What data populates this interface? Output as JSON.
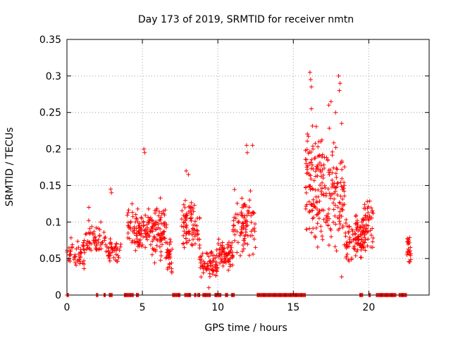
{
  "chart_data": {
    "type": "scatter",
    "title": "Day 173 of 2019, SRMTID for receiver nmtn",
    "xlabel": "GPS time / hours",
    "ylabel": "SRMTID / TECUs",
    "xlim": [
      0,
      24
    ],
    "ylim": [
      0,
      0.35
    ],
    "xticks": [
      0,
      5,
      10,
      15,
      20
    ],
    "xtick_labels": [
      "0",
      "5",
      "10",
      "15",
      "20"
    ],
    "yticks": [
      0,
      0.05,
      0.1,
      0.15,
      0.2,
      0.25,
      0.3,
      0.35
    ],
    "ytick_labels": [
      "0",
      "0.05",
      "0.1",
      "0.15",
      "0.2",
      "0.25",
      "0.3",
      "0.35"
    ],
    "grid": true,
    "marker": "+",
    "color": "#ff0000",
    "clusters": [
      {
        "x_start": 0.0,
        "x_end": 1.2,
        "count": 50,
        "y_min": 0.025,
        "y_max": 0.085
      },
      {
        "x_start": 1.2,
        "x_end": 2.6,
        "count": 55,
        "y_min": 0.045,
        "y_max": 0.105
      },
      {
        "x_start": 2.6,
        "x_end": 3.6,
        "count": 40,
        "y_min": 0.035,
        "y_max": 0.085
      },
      {
        "x_start": 4.0,
        "x_end": 5.4,
        "count": 90,
        "y_min": 0.04,
        "y_max": 0.135
      },
      {
        "x_start": 5.4,
        "x_end": 6.6,
        "count": 95,
        "y_min": 0.035,
        "y_max": 0.14
      },
      {
        "x_start": 6.6,
        "x_end": 7.0,
        "count": 30,
        "y_min": 0.02,
        "y_max": 0.09
      },
      {
        "x_start": 7.6,
        "x_end": 8.8,
        "count": 85,
        "y_min": 0.045,
        "y_max": 0.14
      },
      {
        "x_start": 8.8,
        "x_end": 10.0,
        "count": 70,
        "y_min": 0.015,
        "y_max": 0.07
      },
      {
        "x_start": 10.0,
        "x_end": 11.0,
        "count": 65,
        "y_min": 0.025,
        "y_max": 0.085
      },
      {
        "x_start": 11.0,
        "x_end": 12.5,
        "count": 90,
        "y_min": 0.04,
        "y_max": 0.16
      },
      {
        "x_start": 15.8,
        "x_end": 17.0,
        "count": 120,
        "y_min": 0.05,
        "y_max": 0.25
      },
      {
        "x_start": 17.0,
        "x_end": 18.4,
        "count": 110,
        "y_min": 0.04,
        "y_max": 0.24
      },
      {
        "x_start": 18.4,
        "x_end": 19.6,
        "count": 90,
        "y_min": 0.035,
        "y_max": 0.12
      },
      {
        "x_start": 19.6,
        "x_end": 20.3,
        "count": 60,
        "y_min": 0.03,
        "y_max": 0.16
      },
      {
        "x_start": 22.5,
        "x_end": 22.8,
        "count": 25,
        "y_min": 0.035,
        "y_max": 0.09
      }
    ],
    "peaks": [
      {
        "x": 5.1,
        "y": 0.2
      },
      {
        "x": 5.15,
        "y": 0.195
      },
      {
        "x": 2.9,
        "y": 0.145
      },
      {
        "x": 2.95,
        "y": 0.14
      },
      {
        "x": 1.45,
        "y": 0.12
      },
      {
        "x": 7.9,
        "y": 0.17
      },
      {
        "x": 8.05,
        "y": 0.165
      },
      {
        "x": 11.9,
        "y": 0.205
      },
      {
        "x": 12.3,
        "y": 0.205
      },
      {
        "x": 11.95,
        "y": 0.195
      },
      {
        "x": 16.1,
        "y": 0.305
      },
      {
        "x": 16.15,
        "y": 0.295
      },
      {
        "x": 16.2,
        "y": 0.285
      },
      {
        "x": 16.2,
        "y": 0.255
      },
      {
        "x": 17.5,
        "y": 0.265
      },
      {
        "x": 17.35,
        "y": 0.26
      },
      {
        "x": 18.0,
        "y": 0.3
      },
      {
        "x": 18.1,
        "y": 0.29
      },
      {
        "x": 18.05,
        "y": 0.28
      },
      {
        "x": 16.3,
        "y": 0.2
      },
      {
        "x": 17.8,
        "y": 0.25
      },
      {
        "x": 18.2,
        "y": 0.235
      },
      {
        "x": 9.4,
        "y": 0.01
      },
      {
        "x": 18.2,
        "y": 0.025
      }
    ],
    "zero_segments": [
      [
        0.0,
        0.1
      ],
      [
        1.95,
        2.05
      ],
      [
        2.45,
        2.55
      ],
      [
        2.8,
        3.0
      ],
      [
        3.8,
        4.4
      ],
      [
        4.6,
        4.75
      ],
      [
        7.0,
        7.5
      ],
      [
        7.8,
        8.2
      ],
      [
        8.45,
        8.55
      ],
      [
        8.65,
        8.8
      ],
      [
        9.0,
        9.5
      ],
      [
        9.8,
        10.2
      ],
      [
        10.5,
        10.65
      ],
      [
        10.9,
        11.1
      ],
      [
        12.6,
        15.8
      ],
      [
        19.4,
        19.6
      ],
      [
        20.0,
        20.1
      ],
      [
        20.5,
        21.8
      ],
      [
        22.0,
        22.5
      ]
    ]
  }
}
